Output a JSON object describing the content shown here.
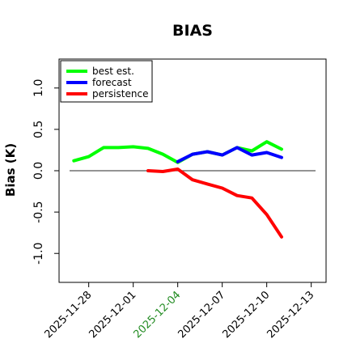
{
  "chart_data": {
    "type": "line",
    "title": "BIAS",
    "xlabel": "",
    "ylabel": "Bias (K)",
    "ylim": [
      -1.35,
      1.35
    ],
    "xlim": [
      "2025-11-26",
      "2025-12-14"
    ],
    "y_ticks": [
      "-1.0",
      "-0.5",
      "0.0",
      "0.5",
      "1.0"
    ],
    "y_tick_values": [
      -1.0,
      -0.5,
      0.0,
      0.5,
      1.0
    ],
    "x_ticks": [
      "2025-11-28",
      "2025-12-01",
      "2025-12-04",
      "2025-12-07",
      "2025-12-10",
      "2025-12-13"
    ],
    "highlighted_tick": "2025-12-04",
    "highlight_color": "#228b22",
    "zero_line": true,
    "grid": false,
    "legend_position": "top-left",
    "series": [
      {
        "name": "best est.",
        "color": "#00ff00",
        "points": [
          [
            "2025-11-27",
            0.12
          ],
          [
            "2025-11-28",
            0.17
          ],
          [
            "2025-11-29",
            0.28
          ],
          [
            "2025-11-30",
            0.28
          ],
          [
            "2025-12-01",
            0.29
          ],
          [
            "2025-12-02",
            0.27
          ],
          [
            "2025-12-03",
            0.2
          ],
          [
            "2025-12-04",
            0.1
          ],
          [
            "2025-12-05",
            0.2
          ],
          [
            "2025-12-06",
            0.23
          ],
          [
            "2025-12-07",
            0.19
          ],
          [
            "2025-12-08",
            0.28
          ],
          [
            "2025-12-09",
            0.24
          ],
          [
            "2025-12-10",
            0.35
          ],
          [
            "2025-12-11",
            0.26
          ]
        ]
      },
      {
        "name": "forecast",
        "color": "#0000ff",
        "points": [
          [
            "2025-12-04",
            0.11
          ],
          [
            "2025-12-05",
            0.2
          ],
          [
            "2025-12-06",
            0.23
          ],
          [
            "2025-12-07",
            0.19
          ],
          [
            "2025-12-08",
            0.28
          ],
          [
            "2025-12-09",
            0.19
          ],
          [
            "2025-12-10",
            0.22
          ],
          [
            "2025-12-11",
            0.16
          ]
        ]
      },
      {
        "name": "persistence",
        "color": "#ff0000",
        "points": [
          [
            "2025-12-02",
            0.0
          ],
          [
            "2025-12-03",
            -0.01
          ],
          [
            "2025-12-04",
            0.02
          ],
          [
            "2025-12-05",
            -0.11
          ],
          [
            "2025-12-06",
            -0.16
          ],
          [
            "2025-12-07",
            -0.21
          ],
          [
            "2025-12-08",
            -0.3
          ],
          [
            "2025-12-09",
            -0.33
          ],
          [
            "2025-12-10",
            -0.53
          ],
          [
            "2025-12-11",
            -0.8
          ]
        ]
      }
    ]
  }
}
